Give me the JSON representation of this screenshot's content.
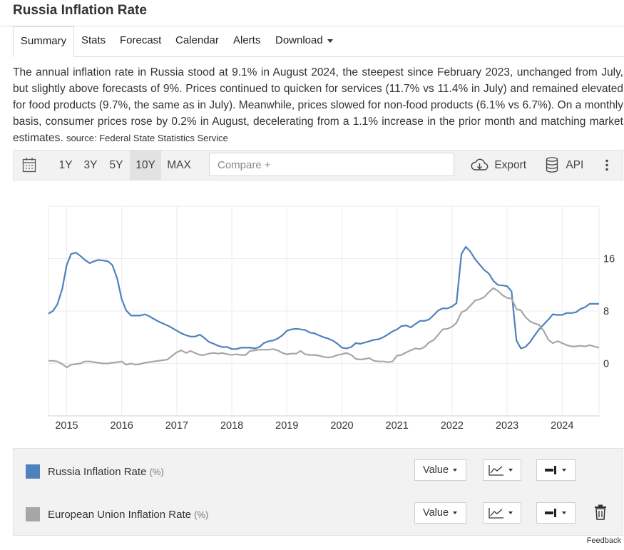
{
  "page": {
    "title": "Russia Inflation Rate"
  },
  "tabs": [
    {
      "label": "Summary"
    },
    {
      "label": "Stats"
    },
    {
      "label": "Forecast"
    },
    {
      "label": "Calendar"
    },
    {
      "label": "Alerts"
    },
    {
      "label": "Download"
    }
  ],
  "description": {
    "text": "The annual inflation rate in Russia stood at 9.1% in August 2024, the steepest since February 2023, unchanged from July, but slightly above forecasts of 9%. Prices continued to quicken for services (11.7% vs 11.4% in July) and remained elevated for food products (9.7%, the same as in July). Meanwhile, prices slowed for non-food products (6.1% vs 6.7%). On a monthly basis, consumer prices rose by 0.2% in August, decelerating from a 1.1% increase in the prior month and matching market estimates.",
    "source": "source: Federal State Statistics Service"
  },
  "toolbar": {
    "ranges": [
      "1Y",
      "3Y",
      "5Y",
      "10Y",
      "MAX"
    ],
    "active_range": "10Y",
    "compare_placeholder": "Compare +",
    "export_label": "Export",
    "api_label": "API"
  },
  "legend": {
    "items": [
      {
        "label": "Russia Inflation Rate",
        "unit": "(%)",
        "color": "#4f81bd",
        "value_label": "Value"
      },
      {
        "label": "European Union Inflation Rate",
        "unit": "(%)",
        "color": "#a6a6a6",
        "value_label": "Value"
      }
    ]
  },
  "footer": {
    "feedback": "Feedback"
  },
  "chart_data": {
    "type": "line",
    "title": "",
    "xlabel": "",
    "ylabel": "",
    "x_ticks": [
      "2015",
      "2016",
      "2017",
      "2018",
      "2019",
      "2020",
      "2021",
      "2022",
      "2023",
      "2024"
    ],
    "y_ticks": [
      0,
      8,
      16
    ],
    "ylim": [
      -8,
      24
    ],
    "xlim": [
      2014.67,
      2024.67
    ],
    "grid": true,
    "series": [
      {
        "name": "Russia Inflation Rate",
        "color": "#4f81bd",
        "points": [
          [
            2014.67,
            7.6
          ],
          [
            2014.75,
            8.0
          ],
          [
            2014.83,
            9.0
          ],
          [
            2014.92,
            11.4
          ],
          [
            2015.0,
            15.0
          ],
          [
            2015.08,
            16.7
          ],
          [
            2015.17,
            16.9
          ],
          [
            2015.25,
            16.4
          ],
          [
            2015.33,
            15.8
          ],
          [
            2015.42,
            15.3
          ],
          [
            2015.5,
            15.6
          ],
          [
            2015.58,
            15.8
          ],
          [
            2015.67,
            15.7
          ],
          [
            2015.75,
            15.6
          ],
          [
            2015.83,
            15.0
          ],
          [
            2015.92,
            12.9
          ],
          [
            2016.0,
            9.8
          ],
          [
            2016.08,
            8.1
          ],
          [
            2016.17,
            7.3
          ],
          [
            2016.25,
            7.3
          ],
          [
            2016.33,
            7.3
          ],
          [
            2016.42,
            7.5
          ],
          [
            2016.5,
            7.2
          ],
          [
            2016.58,
            6.8
          ],
          [
            2016.67,
            6.4
          ],
          [
            2016.75,
            6.1
          ],
          [
            2016.83,
            5.8
          ],
          [
            2016.92,
            5.4
          ],
          [
            2017.0,
            5.0
          ],
          [
            2017.08,
            4.6
          ],
          [
            2017.17,
            4.3
          ],
          [
            2017.25,
            4.1
          ],
          [
            2017.33,
            4.1
          ],
          [
            2017.42,
            4.4
          ],
          [
            2017.5,
            3.9
          ],
          [
            2017.58,
            3.3
          ],
          [
            2017.67,
            3.0
          ],
          [
            2017.75,
            2.7
          ],
          [
            2017.83,
            2.5
          ],
          [
            2017.92,
            2.5
          ],
          [
            2018.0,
            2.2
          ],
          [
            2018.08,
            2.2
          ],
          [
            2018.17,
            2.4
          ],
          [
            2018.25,
            2.4
          ],
          [
            2018.33,
            2.4
          ],
          [
            2018.42,
            2.3
          ],
          [
            2018.5,
            2.5
          ],
          [
            2018.58,
            3.1
          ],
          [
            2018.67,
            3.4
          ],
          [
            2018.75,
            3.5
          ],
          [
            2018.83,
            3.8
          ],
          [
            2018.92,
            4.3
          ],
          [
            2019.0,
            5.0
          ],
          [
            2019.08,
            5.2
          ],
          [
            2019.17,
            5.3
          ],
          [
            2019.25,
            5.2
          ],
          [
            2019.33,
            5.1
          ],
          [
            2019.42,
            4.7
          ],
          [
            2019.5,
            4.6
          ],
          [
            2019.58,
            4.3
          ],
          [
            2019.67,
            4.0
          ],
          [
            2019.75,
            3.8
          ],
          [
            2019.83,
            3.5
          ],
          [
            2019.92,
            3.0
          ],
          [
            2020.0,
            2.4
          ],
          [
            2020.08,
            2.3
          ],
          [
            2020.17,
            2.5
          ],
          [
            2020.25,
            3.1
          ],
          [
            2020.33,
            3.0
          ],
          [
            2020.42,
            3.2
          ],
          [
            2020.5,
            3.4
          ],
          [
            2020.58,
            3.6
          ],
          [
            2020.67,
            3.7
          ],
          [
            2020.75,
            4.0
          ],
          [
            2020.83,
            4.4
          ],
          [
            2020.92,
            4.9
          ],
          [
            2021.0,
            5.2
          ],
          [
            2021.08,
            5.7
          ],
          [
            2021.17,
            5.8
          ],
          [
            2021.25,
            5.5
          ],
          [
            2021.33,
            6.0
          ],
          [
            2021.42,
            6.5
          ],
          [
            2021.5,
            6.5
          ],
          [
            2021.58,
            6.7
          ],
          [
            2021.67,
            7.4
          ],
          [
            2021.75,
            8.1
          ],
          [
            2021.83,
            8.4
          ],
          [
            2021.92,
            8.4
          ],
          [
            2022.0,
            8.7
          ],
          [
            2022.08,
            9.2
          ],
          [
            2022.17,
            16.7
          ],
          [
            2022.25,
            17.8
          ],
          [
            2022.33,
            17.1
          ],
          [
            2022.42,
            15.9
          ],
          [
            2022.5,
            15.1
          ],
          [
            2022.58,
            14.3
          ],
          [
            2022.67,
            13.7
          ],
          [
            2022.75,
            12.6
          ],
          [
            2022.83,
            12.0
          ],
          [
            2022.92,
            11.9
          ],
          [
            2023.0,
            11.8
          ],
          [
            2023.08,
            11.0
          ],
          [
            2023.17,
            3.5
          ],
          [
            2023.25,
            2.3
          ],
          [
            2023.33,
            2.5
          ],
          [
            2023.42,
            3.3
          ],
          [
            2023.5,
            4.3
          ],
          [
            2023.58,
            5.2
          ],
          [
            2023.67,
            6.0
          ],
          [
            2023.75,
            6.7
          ],
          [
            2023.83,
            7.5
          ],
          [
            2023.92,
            7.4
          ],
          [
            2024.0,
            7.4
          ],
          [
            2024.08,
            7.7
          ],
          [
            2024.17,
            7.7
          ],
          [
            2024.25,
            7.8
          ],
          [
            2024.33,
            8.3
          ],
          [
            2024.42,
            8.6
          ],
          [
            2024.5,
            9.1
          ],
          [
            2024.58,
            9.1
          ],
          [
            2024.67,
            9.1
          ]
        ]
      },
      {
        "name": "European Union Inflation Rate",
        "color": "#a6a6a6",
        "points": [
          [
            2014.67,
            0.4
          ],
          [
            2014.75,
            0.4
          ],
          [
            2014.83,
            0.3
          ],
          [
            2014.92,
            -0.1
          ],
          [
            2015.0,
            -0.6
          ],
          [
            2015.08,
            -0.2
          ],
          [
            2015.17,
            -0.1
          ],
          [
            2015.25,
            0.0
          ],
          [
            2015.33,
            0.3
          ],
          [
            2015.42,
            0.3
          ],
          [
            2015.5,
            0.2
          ],
          [
            2015.58,
            0.1
          ],
          [
            2015.67,
            0.0
          ],
          [
            2015.75,
            0.0
          ],
          [
            2015.83,
            0.1
          ],
          [
            2015.92,
            0.2
          ],
          [
            2016.0,
            0.3
          ],
          [
            2016.08,
            -0.2
          ],
          [
            2016.17,
            0.0
          ],
          [
            2016.25,
            -0.2
          ],
          [
            2016.33,
            -0.1
          ],
          [
            2016.42,
            0.1
          ],
          [
            2016.5,
            0.2
          ],
          [
            2016.58,
            0.3
          ],
          [
            2016.67,
            0.4
          ],
          [
            2016.75,
            0.5
          ],
          [
            2016.83,
            0.6
          ],
          [
            2016.92,
            1.2
          ],
          [
            2017.0,
            1.7
          ],
          [
            2017.08,
            2.0
          ],
          [
            2017.17,
            1.6
          ],
          [
            2017.25,
            1.9
          ],
          [
            2017.33,
            1.6
          ],
          [
            2017.42,
            1.3
          ],
          [
            2017.5,
            1.3
          ],
          [
            2017.58,
            1.5
          ],
          [
            2017.67,
            1.6
          ],
          [
            2017.75,
            1.5
          ],
          [
            2017.83,
            1.6
          ],
          [
            2017.92,
            1.4
          ],
          [
            2018.0,
            1.3
          ],
          [
            2018.08,
            1.4
          ],
          [
            2018.17,
            1.3
          ],
          [
            2018.25,
            1.3
          ],
          [
            2018.33,
            1.9
          ],
          [
            2018.42,
            2.0
          ],
          [
            2018.5,
            2.1
          ],
          [
            2018.58,
            2.1
          ],
          [
            2018.67,
            2.1
          ],
          [
            2018.75,
            2.2
          ],
          [
            2018.83,
            2.0
          ],
          [
            2018.92,
            1.6
          ],
          [
            2019.0,
            1.4
          ],
          [
            2019.08,
            1.5
          ],
          [
            2019.17,
            1.5
          ],
          [
            2019.25,
            1.9
          ],
          [
            2019.33,
            1.4
          ],
          [
            2019.42,
            1.3
          ],
          [
            2019.5,
            1.3
          ],
          [
            2019.58,
            1.2
          ],
          [
            2019.67,
            1.0
          ],
          [
            2019.75,
            0.9
          ],
          [
            2019.83,
            1.0
          ],
          [
            2019.92,
            1.3
          ],
          [
            2020.0,
            1.4
          ],
          [
            2020.08,
            1.6
          ],
          [
            2020.17,
            1.3
          ],
          [
            2020.25,
            0.7
          ],
          [
            2020.33,
            0.6
          ],
          [
            2020.42,
            0.7
          ],
          [
            2020.5,
            0.8
          ],
          [
            2020.58,
            0.4
          ],
          [
            2020.67,
            0.3
          ],
          [
            2020.75,
            0.3
          ],
          [
            2020.83,
            0.2
          ],
          [
            2020.92,
            0.3
          ],
          [
            2021.0,
            1.2
          ],
          [
            2021.08,
            1.3
          ],
          [
            2021.17,
            1.7
          ],
          [
            2021.25,
            2.0
          ],
          [
            2021.33,
            2.3
          ],
          [
            2021.42,
            2.2
          ],
          [
            2021.5,
            2.5
          ],
          [
            2021.58,
            3.2
          ],
          [
            2021.67,
            3.6
          ],
          [
            2021.75,
            4.4
          ],
          [
            2021.83,
            5.2
          ],
          [
            2021.92,
            5.3
          ],
          [
            2022.0,
            5.6
          ],
          [
            2022.08,
            6.2
          ],
          [
            2022.17,
            7.8
          ],
          [
            2022.25,
            8.1
          ],
          [
            2022.33,
            8.8
          ],
          [
            2022.42,
            9.6
          ],
          [
            2022.5,
            9.8
          ],
          [
            2022.58,
            10.1
          ],
          [
            2022.67,
            10.9
          ],
          [
            2022.75,
            11.5
          ],
          [
            2022.83,
            11.1
          ],
          [
            2022.92,
            10.4
          ],
          [
            2023.0,
            10.0
          ],
          [
            2023.08,
            9.9
          ],
          [
            2023.17,
            8.3
          ],
          [
            2023.25,
            8.1
          ],
          [
            2023.33,
            7.1
          ],
          [
            2023.42,
            6.4
          ],
          [
            2023.5,
            6.1
          ],
          [
            2023.58,
            5.9
          ],
          [
            2023.67,
            4.9
          ],
          [
            2023.75,
            3.6
          ],
          [
            2023.83,
            3.1
          ],
          [
            2023.92,
            3.4
          ],
          [
            2024.0,
            3.1
          ],
          [
            2024.08,
            2.8
          ],
          [
            2024.17,
            2.6
          ],
          [
            2024.25,
            2.6
          ],
          [
            2024.33,
            2.7
          ],
          [
            2024.42,
            2.6
          ],
          [
            2024.5,
            2.8
          ],
          [
            2024.58,
            2.6
          ],
          [
            2024.67,
            2.4
          ]
        ]
      }
    ]
  }
}
